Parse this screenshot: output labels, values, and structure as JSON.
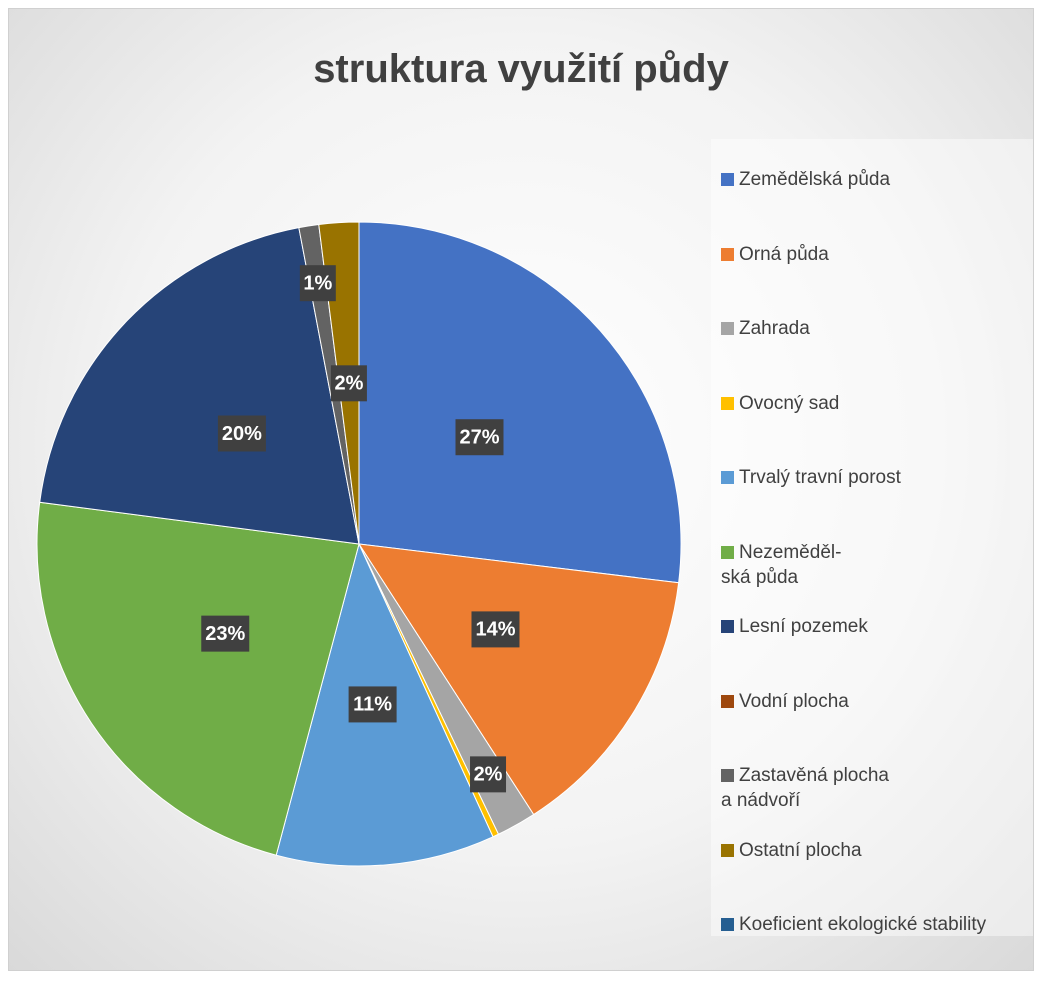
{
  "chart_data": {
    "type": "pie",
    "title": "struktura využití půdy",
    "categories": [
      "Zemědělská půda",
      "Orná půda",
      "Zahrada",
      "Ovocný sad",
      "Trvalý travní porost",
      "Nezeměděl-\nská půda",
      "Lesní pozemek",
      "Vodní plocha",
      "Zastavěná plocha\na nádvoří",
      "Ostatní plocha",
      "Koeficient ekologické stability"
    ],
    "values": [
      27,
      14,
      2,
      0.3,
      11,
      23,
      20,
      0,
      1,
      2,
      0
    ],
    "value_labels": [
      "27%",
      "14%",
      "2%",
      null,
      "11%",
      "23%",
      "20%",
      null,
      "1%",
      "2%",
      null
    ],
    "colors": [
      "#4472c4",
      "#ed7d31",
      "#a5a5a5",
      "#ffc000",
      "#5b9bd5",
      "#70ad47",
      "#264478",
      "#9e480e",
      "#636363",
      "#997300",
      "#255e91"
    ],
    "legend": "right"
  }
}
